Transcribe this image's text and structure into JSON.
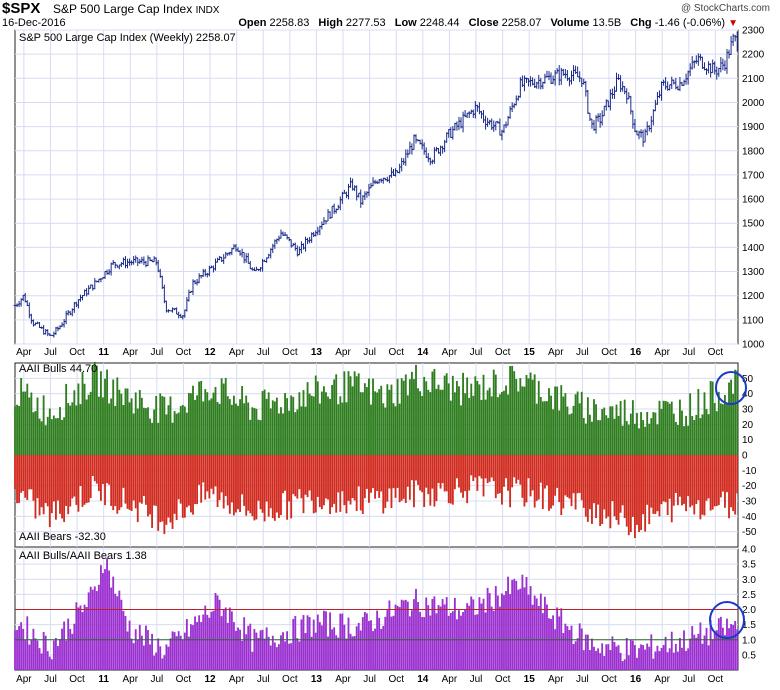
{
  "header": {
    "symbol": "$SPX",
    "name": "S&P 500 Large Cap Index",
    "exchange": "INDX",
    "date": "16-Dec-2016",
    "open_label": "Open",
    "open": "2258.83",
    "high_label": "High",
    "high": "2277.53",
    "low_label": "Low",
    "low": "2248.44",
    "close_label": "Close",
    "close": "2258.07",
    "volume_label": "Volume",
    "volume": "13.5B",
    "chg_label": "Chg",
    "chg": "-1.46 (-0.06%)",
    "credit": "@ StockCharts.com"
  },
  "colors": {
    "bars": "#1a2a8a",
    "bulls": "#2e7d1e",
    "bears": "#d12a1e",
    "ratio": "#9b30d0",
    "grid": "#d8dcf0",
    "ref_high": "#c0202a",
    "ref_low": "#2a6a2a",
    "circle": "#1a3aca"
  },
  "x_axis_labels": [
    "Apr",
    "Jul",
    "Oct",
    "11",
    "Apr",
    "Jul",
    "Oct",
    "12",
    "Apr",
    "Jul",
    "Oct",
    "13",
    "Apr",
    "Jul",
    "Oct",
    "14",
    "Apr",
    "Jul",
    "Oct",
    "15",
    "Apr",
    "Jul",
    "Oct",
    "16",
    "Apr",
    "Jul",
    "Oct"
  ],
  "chart_data": [
    {
      "type": "ohlc",
      "title": "S&P 500 Large Cap Index (Weekly) 2258.07",
      "ylim": [
        1000,
        2300
      ],
      "yticks": [
        1000,
        1100,
        1200,
        1300,
        1400,
        1500,
        1600,
        1700,
        1800,
        1900,
        2000,
        2100,
        2200,
        2300
      ],
      "x_start": "2010-03",
      "x_end": "2016-12",
      "anchors": [
        {
          "date": "2010-03",
          "close": 1160
        },
        {
          "date": "2010-04",
          "close": 1200
        },
        {
          "date": "2010-05",
          "close": 1090
        },
        {
          "date": "2010-07",
          "close": 1030
        },
        {
          "date": "2010-08",
          "close": 1070
        },
        {
          "date": "2010-10",
          "close": 1180
        },
        {
          "date": "2010-12",
          "close": 1250
        },
        {
          "date": "2011-02",
          "close": 1330
        },
        {
          "date": "2011-04",
          "close": 1340
        },
        {
          "date": "2011-07",
          "close": 1340
        },
        {
          "date": "2011-08",
          "close": 1150
        },
        {
          "date": "2011-10",
          "close": 1120
        },
        {
          "date": "2011-11",
          "close": 1250
        },
        {
          "date": "2012-01",
          "close": 1310
        },
        {
          "date": "2012-04",
          "close": 1410
        },
        {
          "date": "2012-06",
          "close": 1290
        },
        {
          "date": "2012-09",
          "close": 1460
        },
        {
          "date": "2012-11",
          "close": 1380
        },
        {
          "date": "2013-01",
          "close": 1480
        },
        {
          "date": "2013-03",
          "close": 1560
        },
        {
          "date": "2013-05",
          "close": 1660
        },
        {
          "date": "2013-06",
          "close": 1590
        },
        {
          "date": "2013-08",
          "close": 1690
        },
        {
          "date": "2013-10",
          "close": 1700
        },
        {
          "date": "2013-12",
          "close": 1840
        },
        {
          "date": "2014-02",
          "close": 1770
        },
        {
          "date": "2014-04",
          "close": 1870
        },
        {
          "date": "2014-07",
          "close": 1980
        },
        {
          "date": "2014-08",
          "close": 1930
        },
        {
          "date": "2014-10",
          "close": 1880
        },
        {
          "date": "2014-12",
          "close": 2070
        },
        {
          "date": "2015-03",
          "close": 2100
        },
        {
          "date": "2015-05",
          "close": 2120
        },
        {
          "date": "2015-07",
          "close": 2100
        },
        {
          "date": "2015-08",
          "close": 1900
        },
        {
          "date": "2015-09",
          "close": 1930
        },
        {
          "date": "2015-11",
          "close": 2090
        },
        {
          "date": "2015-12",
          "close": 2040
        },
        {
          "date": "2016-01",
          "close": 1880
        },
        {
          "date": "2016-02",
          "close": 1850
        },
        {
          "date": "2016-04",
          "close": 2070
        },
        {
          "date": "2016-06",
          "close": 2080
        },
        {
          "date": "2016-08",
          "close": 2180
        },
        {
          "date": "2016-10",
          "close": 2130
        },
        {
          "date": "2016-11",
          "close": 2160
        },
        {
          "date": "2016-12",
          "close": 2258
        }
      ]
    },
    {
      "type": "bar",
      "title": "AAII Bulls 44.70",
      "bottom_title": "AAII Bears -32.30",
      "ylim": [
        -60,
        60
      ],
      "yticks": [
        -50,
        -40,
        -30,
        -20,
        -10,
        0,
        10,
        20,
        30,
        40,
        50
      ],
      "bulls_anchors": [
        {
          "date": "2010-03",
          "v": 42
        },
        {
          "date": "2010-07",
          "v": 28
        },
        {
          "date": "2010-12",
          "v": 50
        },
        {
          "date": "2011-03",
          "v": 40
        },
        {
          "date": "2011-08",
          "v": 28
        },
        {
          "date": "2012-01",
          "v": 45
        },
        {
          "date": "2012-06",
          "v": 30
        },
        {
          "date": "2012-12",
          "v": 40
        },
        {
          "date": "2013-05",
          "v": 45
        },
        {
          "date": "2013-09",
          "v": 38
        },
        {
          "date": "2013-12",
          "v": 50
        },
        {
          "date": "2014-06",
          "v": 42
        },
        {
          "date": "2014-12",
          "v": 50
        },
        {
          "date": "2015-06",
          "v": 32
        },
        {
          "date": "2015-10",
          "v": 28
        },
        {
          "date": "2016-03",
          "v": 28
        },
        {
          "date": "2016-07",
          "v": 30
        },
        {
          "date": "2016-12",
          "v": 45
        }
      ],
      "bears_anchors": [
        {
          "date": "2010-03",
          "v": -25
        },
        {
          "date": "2010-07",
          "v": -40
        },
        {
          "date": "2010-12",
          "v": -22
        },
        {
          "date": "2011-08",
          "v": -42
        },
        {
          "date": "2012-01",
          "v": -25
        },
        {
          "date": "2012-06",
          "v": -38
        },
        {
          "date": "2013-01",
          "v": -28
        },
        {
          "date": "2013-06",
          "v": -30
        },
        {
          "date": "2014-01",
          "v": -25
        },
        {
          "date": "2014-06",
          "v": -22
        },
        {
          "date": "2015-01",
          "v": -25
        },
        {
          "date": "2015-08",
          "v": -35
        },
        {
          "date": "2016-01",
          "v": -45
        },
        {
          "date": "2016-06",
          "v": -32
        },
        {
          "date": "2016-12",
          "v": -32
        }
      ]
    },
    {
      "type": "bar",
      "title": "AAII Bulls/AAII Bears 1.38",
      "ylim": [
        0,
        4
      ],
      "yticks": [
        0.5,
        1.0,
        1.5,
        2.0,
        2.5,
        3.0,
        3.5,
        4.0
      ],
      "ref_lines": [
        2.0,
        1.0
      ],
      "anchors": [
        {
          "date": "2010-03",
          "v": 1.6
        },
        {
          "date": "2010-07",
          "v": 0.7
        },
        {
          "date": "2010-12",
          "v": 2.5
        },
        {
          "date": "2011-01",
          "v": 3.7
        },
        {
          "date": "2011-04",
          "v": 1.3
        },
        {
          "date": "2011-08",
          "v": 0.6
        },
        {
          "date": "2012-02",
          "v": 2.2
        },
        {
          "date": "2012-06",
          "v": 0.9
        },
        {
          "date": "2013-01",
          "v": 1.5
        },
        {
          "date": "2013-06",
          "v": 1.4
        },
        {
          "date": "2013-12",
          "v": 2.2
        },
        {
          "date": "2014-06",
          "v": 1.9
        },
        {
          "date": "2014-12",
          "v": 2.8
        },
        {
          "date": "2015-03",
          "v": 1.9
        },
        {
          "date": "2015-08",
          "v": 0.8
        },
        {
          "date": "2016-01",
          "v": 0.6
        },
        {
          "date": "2016-06",
          "v": 0.9
        },
        {
          "date": "2016-12",
          "v": 1.4
        }
      ]
    }
  ]
}
